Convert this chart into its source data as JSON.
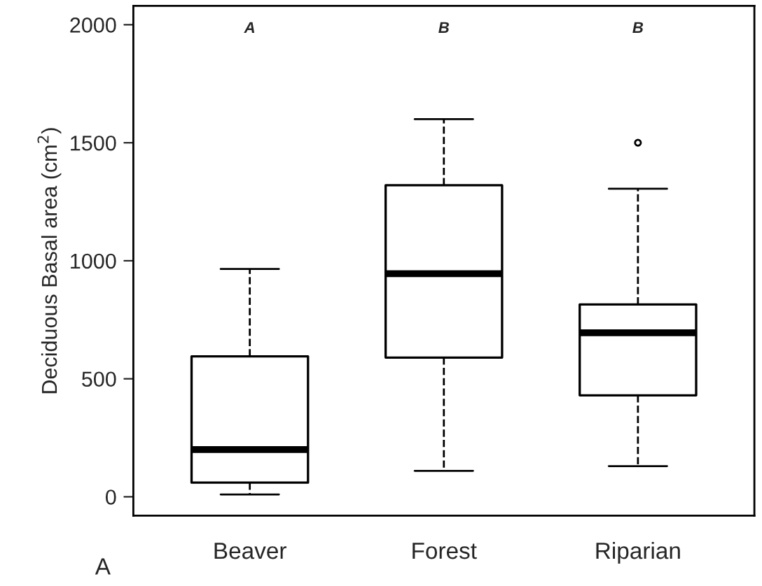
{
  "chart_data": {
    "type": "box",
    "ylabel": "Deciduous Basal area (cm$^{2}$)",
    "categories": [
      "Beaver",
      "Forest",
      "Riparian"
    ],
    "boxes": [
      {
        "low": 10,
        "q1": 60,
        "median": 200,
        "q3": 595,
        "high": 965
      },
      {
        "low": 110,
        "q1": 590,
        "median": 945,
        "q3": 1320,
        "high": 1600
      },
      {
        "low": 130,
        "q1": 430,
        "median": 695,
        "q3": 815,
        "high": 1305,
        "outliers": [
          1500
        ]
      }
    ],
    "ylim": [
      -80,
      2080
    ],
    "yticks": [
      0,
      500,
      1000,
      1500,
      2000
    ],
    "grid": false,
    "annotations": [
      "A",
      "B",
      "B",
      "A"
    ]
  }
}
